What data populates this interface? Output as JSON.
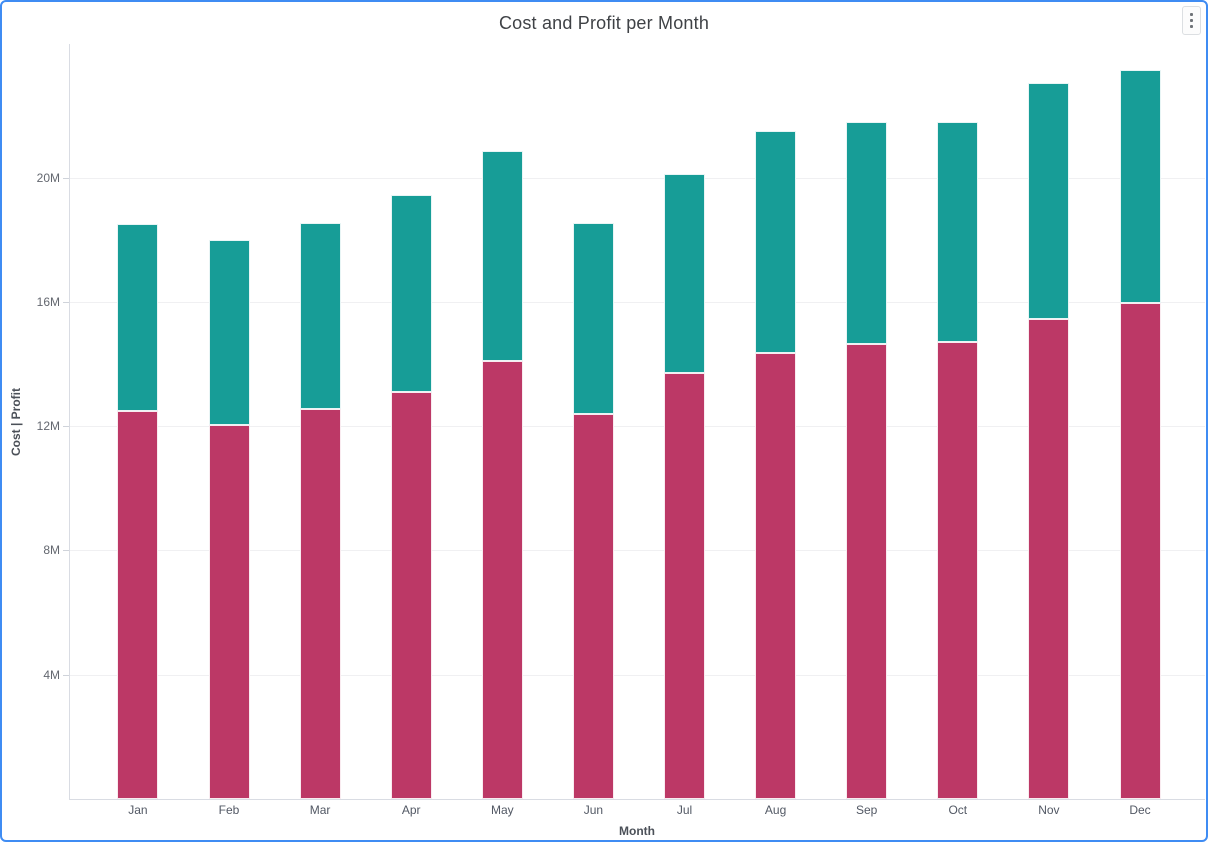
{
  "page": {
    "border_color": "#3F8CF3"
  },
  "header": {
    "menu_icon": "kebab-menu"
  },
  "chart_data": {
    "type": "bar",
    "stacked": true,
    "title": "Cost and Profit per Month",
    "unit": "M",
    "categories": [
      "Jan",
      "Feb",
      "Mar",
      "Apr",
      "May",
      "Jun",
      "Jul",
      "Aug",
      "Sep",
      "Oct",
      "Nov",
      "Dec"
    ],
    "series": [
      {
        "name": "Cost",
        "color": "#BC3866",
        "values": [
          12.5,
          12.05,
          12.55,
          13.1,
          14.1,
          12.4,
          13.7,
          14.35,
          14.65,
          14.7,
          15.45,
          15.95
        ]
      },
      {
        "name": "Profit",
        "color": "#179D97",
        "values": [
          6.0,
          5.95,
          6.0,
          6.35,
          6.75,
          6.15,
          6.4,
          7.15,
          7.15,
          7.1,
          7.6,
          7.5
        ]
      }
    ],
    "xlabel": "Month",
    "ylabel": "Cost  |  Profit",
    "y_ticks": [
      {
        "label": "4M",
        "value": 4
      },
      {
        "label": "8M",
        "value": 8
      },
      {
        "label": "12M",
        "value": 12
      },
      {
        "label": "16M",
        "value": 16
      },
      {
        "label": "20M",
        "value": 20
      }
    ],
    "ylim": [
      0,
      24.3
    ],
    "grid": true,
    "legend": false
  }
}
